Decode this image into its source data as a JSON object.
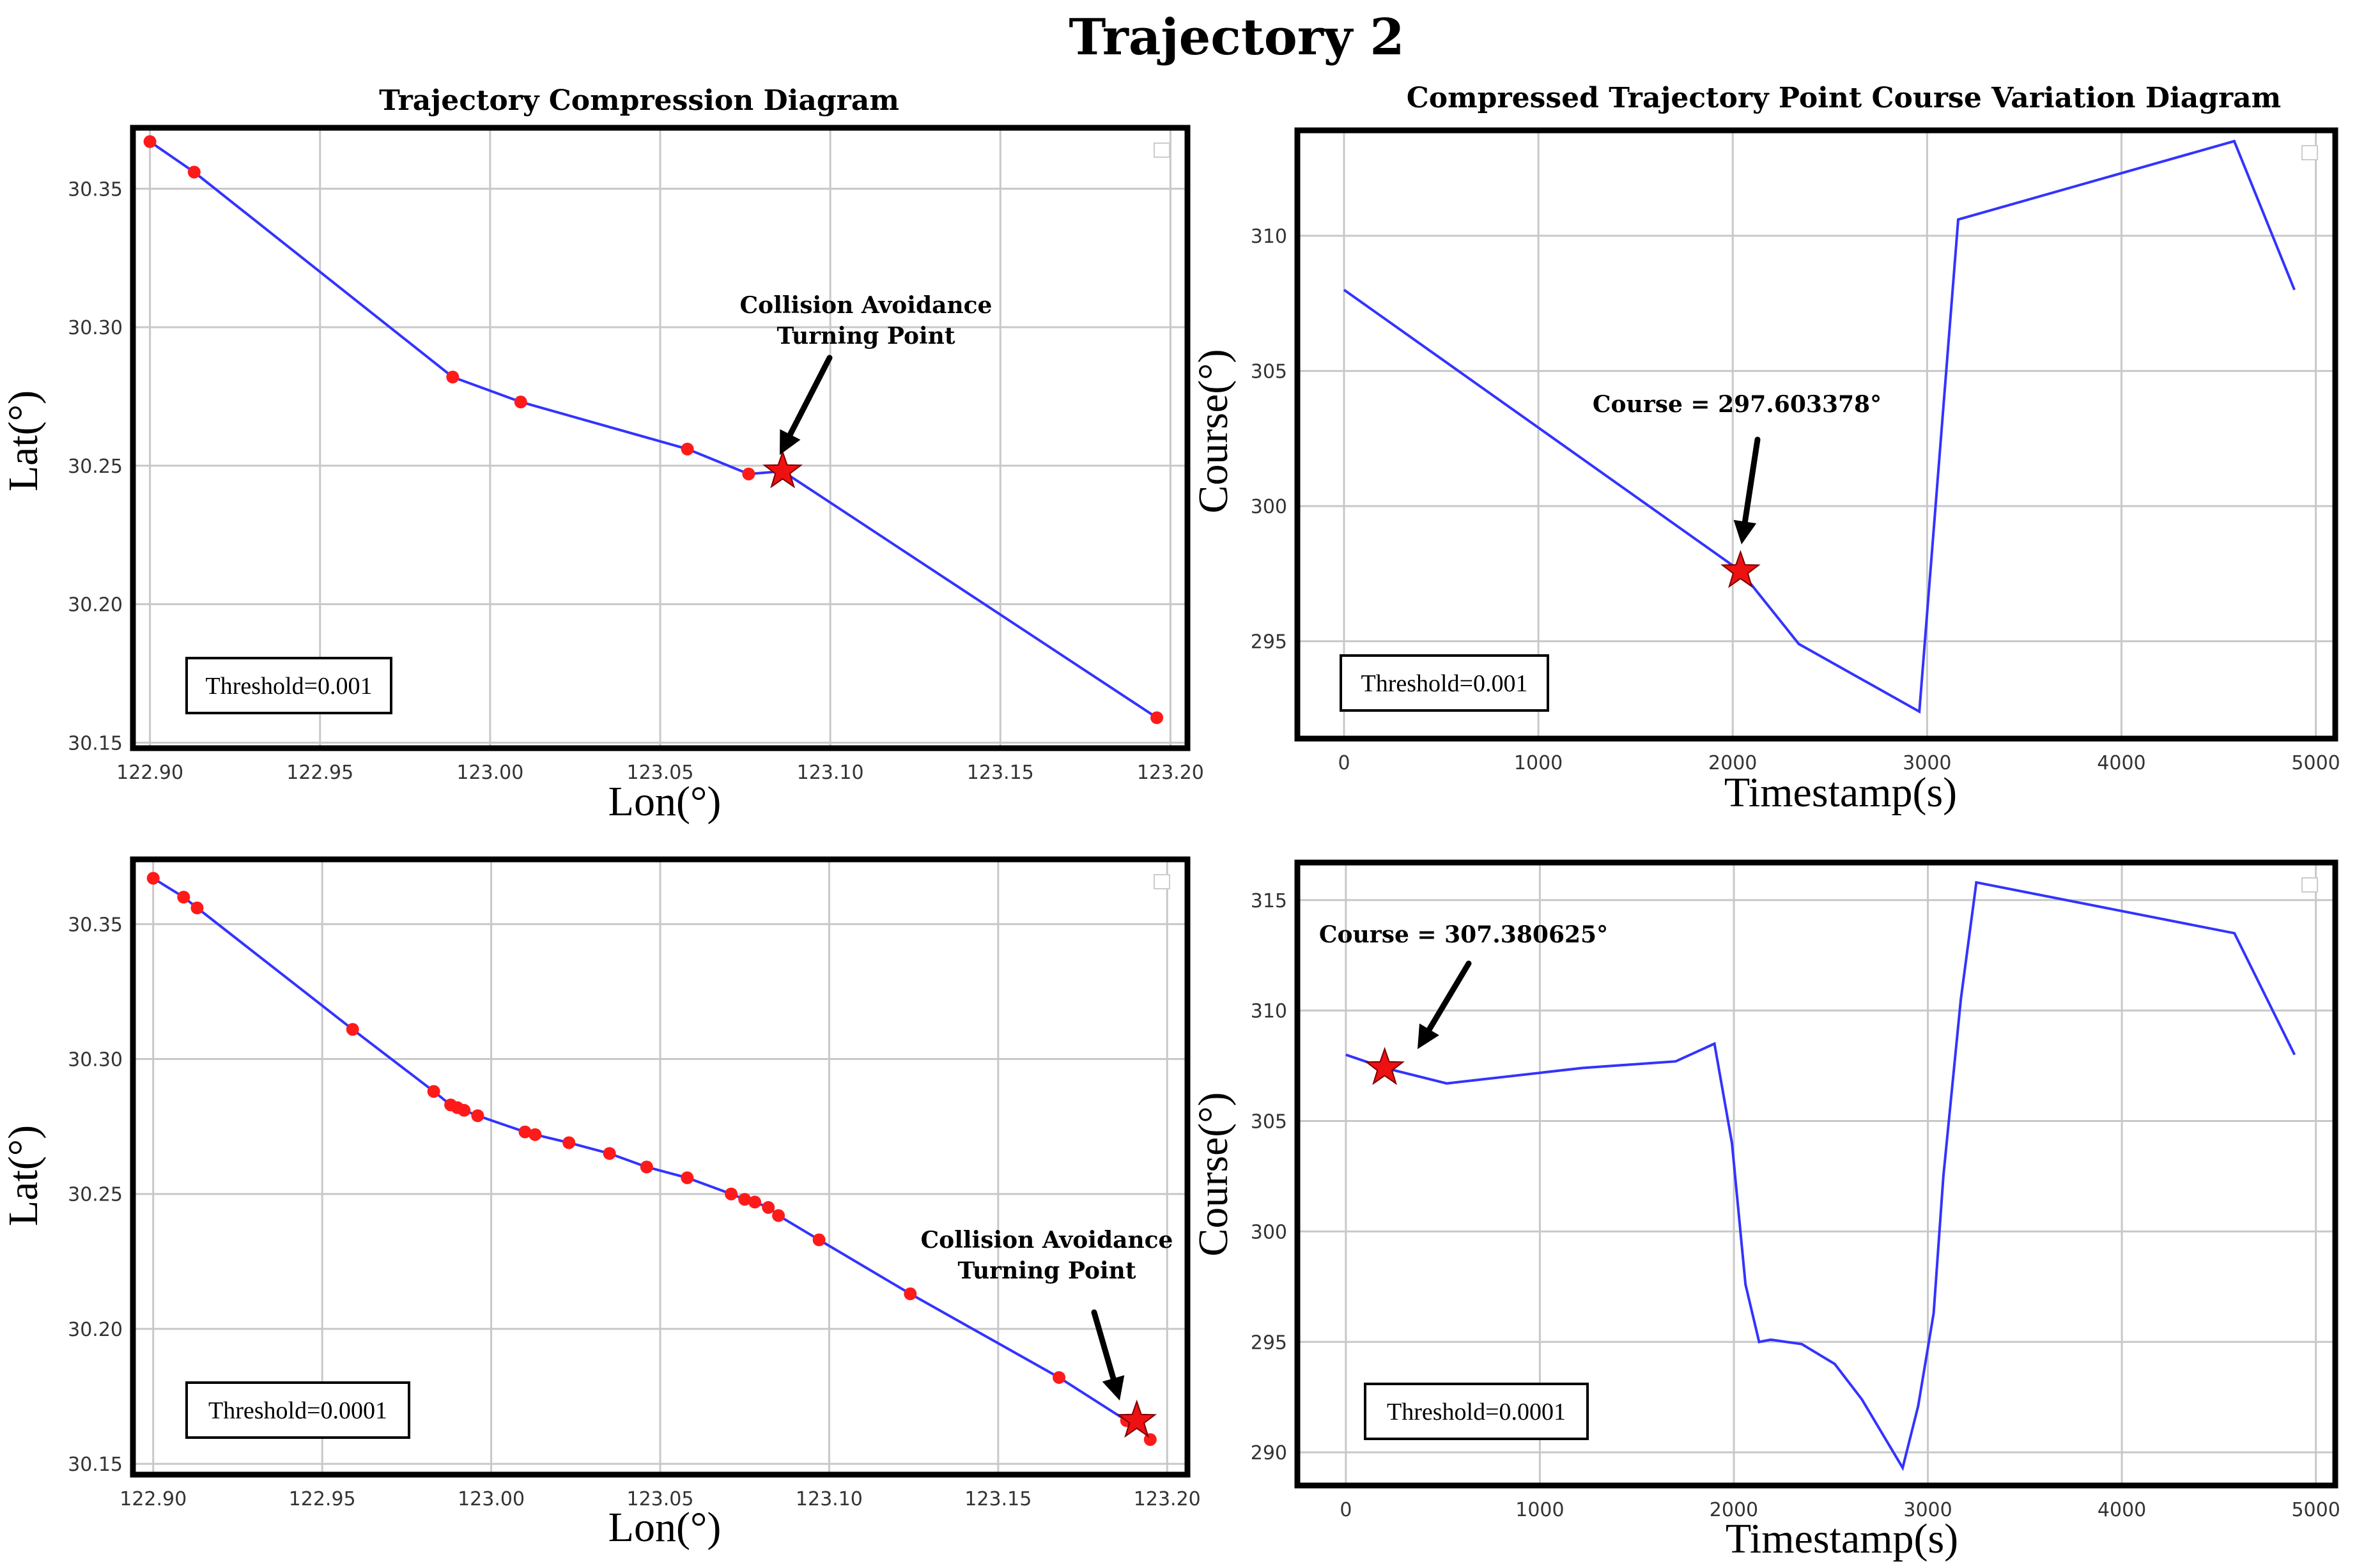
{
  "figure_title": "Trajectory 2",
  "chart_data": [
    {
      "id": "p1",
      "type": "line",
      "title": "Trajectory Compression Diagram",
      "xlabel": "Lon(°)",
      "ylabel": "Lat(°)",
      "xlim": [
        122.895,
        123.205
      ],
      "ylim": [
        30.148,
        30.372
      ],
      "xticks": [
        122.9,
        122.95,
        123.0,
        123.05,
        123.1,
        123.15,
        123.2
      ],
      "xtick_labels": [
        "122.90",
        "122.95",
        "123.00",
        "123.05",
        "123.10",
        "123.15",
        "123.20"
      ],
      "yticks": [
        30.15,
        30.2,
        30.25,
        30.3,
        30.35
      ],
      "ytick_labels": [
        "30.15",
        "30.20",
        "30.25",
        "30.30",
        "30.35"
      ],
      "grid": true,
      "series": [
        {
          "name": "compressed trajectory",
          "color": "#3333ff",
          "marker_color": "#ff1a1a",
          "x": [
            122.9,
            122.913,
            122.989,
            123.009,
            123.058,
            123.076,
            123.086,
            123.196
          ],
          "y": [
            30.367,
            30.356,
            30.282,
            30.273,
            30.256,
            30.247,
            30.248,
            30.159
          ],
          "markers": [
            true,
            true,
            true,
            true,
            true,
            true,
            false,
            true
          ]
        }
      ],
      "star": {
        "x": 123.086,
        "y": 30.248
      },
      "annotation": {
        "lines": [
          "Collision Avoidance",
          "Turning Point"
        ]
      },
      "threshold_label": "Threshold=0.001"
    },
    {
      "id": "p2",
      "type": "line",
      "title": "Compressed Trajectory Point Course Variation Diagram",
      "xlabel": "Timestamp(s)",
      "ylabel": "Course(°)",
      "xlim": [
        -240,
        5100
      ],
      "ylim": [
        291.4,
        313.9
      ],
      "xticks": [
        0,
        1000,
        2000,
        3000,
        4000,
        5000
      ],
      "xtick_labels": [
        "0",
        "1000",
        "2000",
        "3000",
        "4000",
        "5000"
      ],
      "yticks": [
        295,
        300,
        305,
        310
      ],
      "ytick_labels": [
        "295",
        "300",
        "305",
        "310"
      ],
      "grid": true,
      "series": [
        {
          "name": "course",
          "color": "#3333ff",
          "x": [
            0,
            2040,
            2340,
            2960,
            3160,
            4580,
            4890
          ],
          "y": [
            308.0,
            297.6,
            294.9,
            292.4,
            310.6,
            313.5,
            308.0
          ]
        }
      ],
      "star": {
        "x": 2040,
        "y": 297.6
      },
      "annotation": {
        "lines": [
          "Course = 297.603378°"
        ]
      },
      "threshold_label": "Threshold=0.001"
    },
    {
      "id": "p3",
      "type": "line",
      "title": "",
      "xlabel": "Lon(°)",
      "ylabel": "Lat(°)",
      "xlim": [
        122.894,
        123.206
      ],
      "ylim": [
        30.146,
        30.374
      ],
      "xticks": [
        122.9,
        122.95,
        123.0,
        123.05,
        123.1,
        123.15,
        123.2
      ],
      "xtick_labels": [
        "122.90",
        "122.95",
        "123.00",
        "123.05",
        "123.10",
        "123.15",
        "123.20"
      ],
      "yticks": [
        30.15,
        30.2,
        30.25,
        30.3,
        30.35
      ],
      "ytick_labels": [
        "30.15",
        "30.20",
        "30.25",
        "30.30",
        "30.35"
      ],
      "grid": true,
      "series": [
        {
          "name": "compressed trajectory",
          "color": "#3333ff",
          "marker_color": "#ff1a1a",
          "x": [
            122.9,
            122.909,
            122.913,
            122.959,
            122.983,
            122.988,
            122.99,
            122.992,
            122.996,
            123.01,
            123.013,
            123.023,
            123.035,
            123.046,
            123.058,
            123.071,
            123.075,
            123.078,
            123.082,
            123.085,
            123.097,
            123.124,
            123.168,
            123.188,
            123.191,
            123.195
          ],
          "y": [
            30.367,
            30.36,
            30.356,
            30.311,
            30.288,
            30.283,
            30.282,
            30.281,
            30.279,
            30.273,
            30.272,
            30.269,
            30.265,
            30.26,
            30.256,
            30.25,
            30.248,
            30.247,
            30.245,
            30.242,
            30.233,
            30.213,
            30.182,
            30.166,
            30.166,
            30.159
          ],
          "markers": true
        }
      ],
      "star": {
        "x": 123.191,
        "y": 30.166
      },
      "annotation": {
        "lines": [
          "Collision Avoidance",
          "Turning Point"
        ]
      },
      "threshold_label": "Threshold=0.0001"
    },
    {
      "id": "p4",
      "type": "line",
      "title": "",
      "xlabel": "Timestamp(s)",
      "ylabel": "Course(°)",
      "xlim": [
        -250,
        5100
      ],
      "ylim": [
        288.5,
        316.7
      ],
      "xticks": [
        0,
        1000,
        2000,
        3000,
        4000,
        5000
      ],
      "xtick_labels": [
        "0",
        "1000",
        "2000",
        "3000",
        "4000",
        "5000"
      ],
      "yticks": [
        290,
        295,
        300,
        305,
        310,
        315
      ],
      "ytick_labels": [
        "290",
        "295",
        "300",
        "305",
        "310",
        "315"
      ],
      "grid": true,
      "series": [
        {
          "name": "course",
          "color": "#3333ff",
          "x": [
            0,
            200,
            520,
            1220,
            1700,
            1900,
            1990,
            2060,
            2130,
            2190,
            2350,
            2520,
            2660,
            2870,
            2950,
            3030,
            3080,
            3170,
            3250,
            4580,
            4890
          ],
          "y": [
            308.0,
            307.4,
            306.7,
            307.4,
            307.7,
            308.5,
            304.0,
            297.6,
            295.0,
            295.1,
            294.9,
            294.0,
            292.4,
            289.3,
            292.1,
            296.3,
            302.5,
            310.5,
            315.8,
            313.5,
            308.0
          ]
        }
      ],
      "star": {
        "x": 200,
        "y": 307.4
      },
      "annotation": {
        "lines": [
          "Course = 307.380625°"
        ]
      },
      "threshold_label": "Threshold=0.0001"
    }
  ]
}
